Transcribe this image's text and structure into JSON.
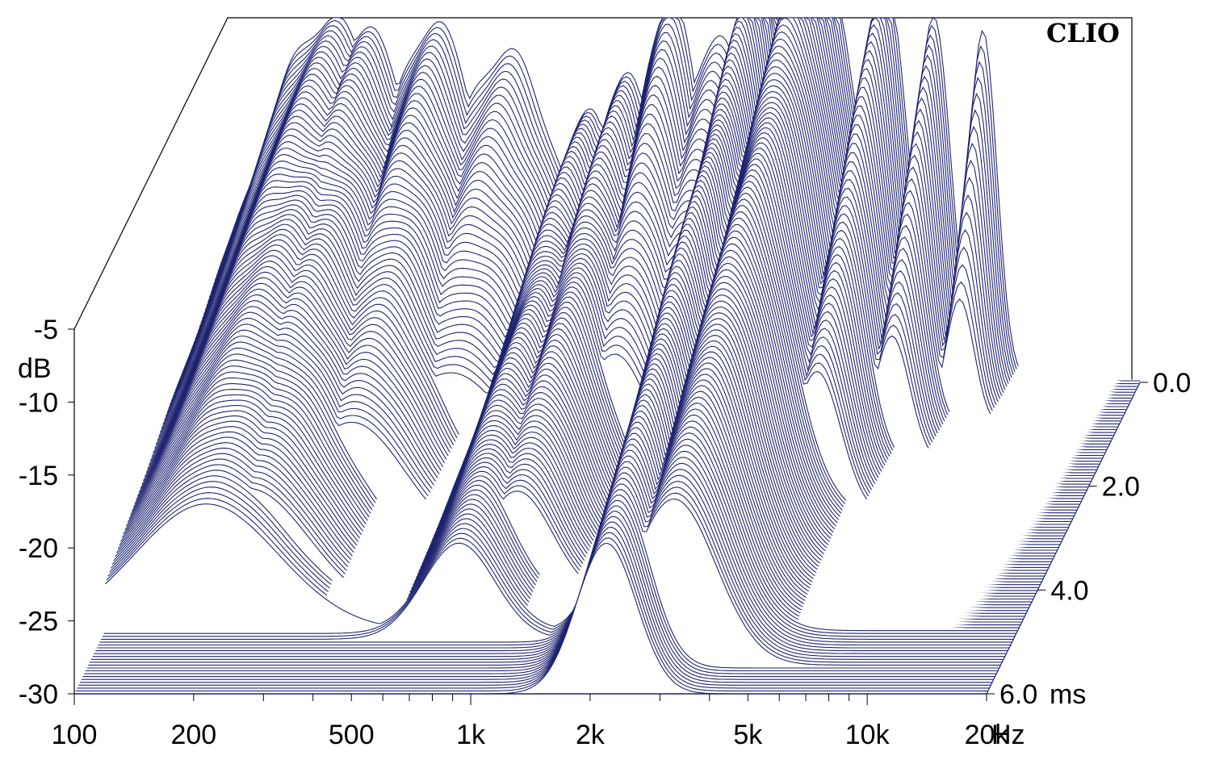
{
  "brand": "CLIO",
  "colors": {
    "line": "#1f2470",
    "frame": "#000000",
    "background": "#ffffff"
  },
  "chart_data": {
    "type": "waterfall",
    "title": "",
    "x_axis": {
      "scale": "log",
      "range": [
        100,
        20000
      ],
      "ticks": [
        100,
        200,
        500,
        1000,
        2000,
        5000,
        10000,
        20000
      ],
      "tick_labels": [
        "100",
        "200",
        "500",
        "1k",
        "2k",
        "5k",
        "10k",
        "20k"
      ],
      "unit": "Hz"
    },
    "z_axis": {
      "range": [
        -30,
        -5
      ],
      "ticks": [
        -5,
        -10,
        -15,
        -20,
        -25,
        -30
      ],
      "tick_labels": [
        "-5",
        "-10",
        "-15",
        "-20",
        "-25",
        "-30"
      ],
      "label": "dB"
    },
    "time_axis": {
      "range": [
        0,
        6
      ],
      "ticks": [
        0,
        2,
        4,
        6
      ],
      "tick_labels": [
        "0.0",
        "2.0",
        "4.0",
        "6.0"
      ],
      "unit": "ms"
    },
    "slices": 110,
    "peaks": [
      {
        "freq": 180,
        "level": -5.3,
        "decay_ms": 4.8,
        "width_oct": 0.6
      },
      {
        "freq": 220,
        "level": -6.0,
        "decay_ms": 4.5,
        "width_oct": 0.5
      },
      {
        "freq": 330,
        "level": -5.6,
        "decay_ms": 3.2,
        "width_oct": 0.45
      },
      {
        "freq": 500,
        "level": -7.5,
        "decay_ms": 2.2,
        "width_oct": 0.5
      },
      {
        "freq": 800,
        "level": -11.5,
        "decay_ms": 5.0,
        "width_oct": 0.3
      },
      {
        "freq": 1000,
        "level": -9.0,
        "decay_ms": 4.2,
        "width_oct": 0.3
      },
      {
        "freq": 1300,
        "level": -4.0,
        "decay_ms": 2.2,
        "width_oct": 0.3
      },
      {
        "freq": 1700,
        "level": -6.5,
        "decay_ms": 1.8,
        "width_oct": 0.35
      },
      {
        "freq": 2200,
        "level": -0.5,
        "decay_ms": 6.0,
        "width_oct": 0.25
      },
      {
        "freq": 3000,
        "level": 2.0,
        "decay_ms": 5.5,
        "width_oct": 0.35
      },
      {
        "freq": 4500,
        "level": -2.0,
        "decay_ms": 2.6,
        "width_oct": 0.2
      },
      {
        "freq": 6000,
        "level": -5.0,
        "decay_ms": 1.6,
        "width_oct": 0.15
      },
      {
        "freq": 8000,
        "level": -6.0,
        "decay_ms": 0.9,
        "width_oct": 0.12
      }
    ]
  }
}
